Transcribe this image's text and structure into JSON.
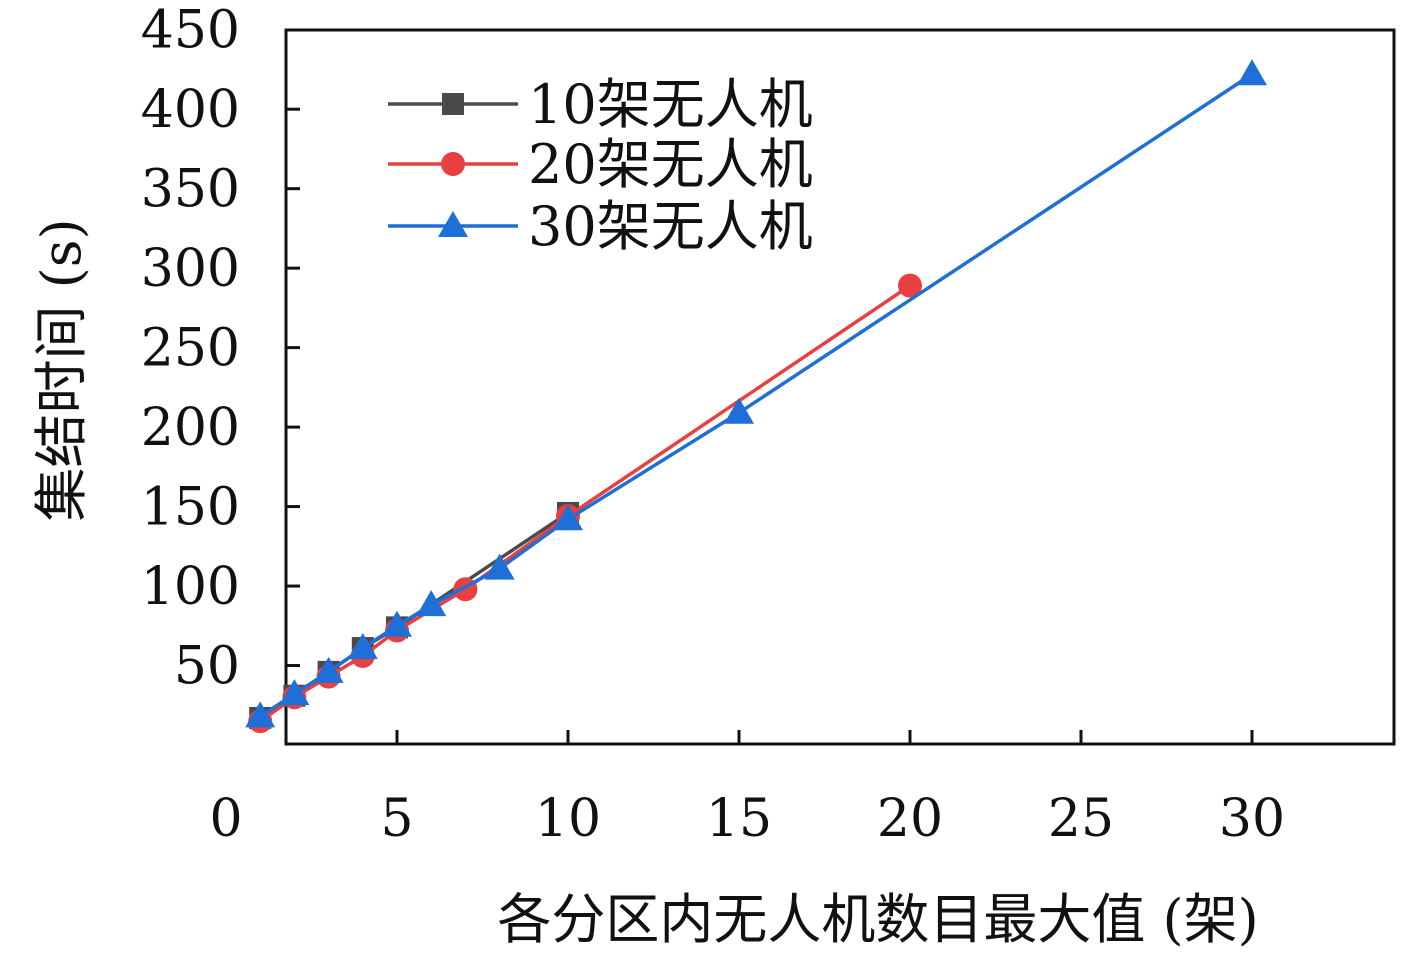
{
  "chart_data": {
    "type": "line",
    "title": "",
    "xlabel": "各分区内无人机数目最大值 (架)",
    "ylabel": "集结时间 (s)",
    "xlim": [
      0,
      32.5
    ],
    "ylim": [
      0,
      450
    ],
    "xticks": [
      0,
      5,
      10,
      15,
      20,
      25,
      30
    ],
    "yticks": [
      50,
      100,
      150,
      200,
      250,
      300,
      350,
      400,
      450
    ],
    "xtick_labels": [
      "0",
      "5",
      "10",
      "15",
      "20",
      "25",
      "30"
    ],
    "ytick_labels": [
      "50",
      "100",
      "150",
      "200",
      "250",
      "300",
      "350",
      "400",
      "450"
    ],
    "grid": false,
    "legend_position": "top-left",
    "series": [
      {
        "name": "10架无人机",
        "color": "#4a4a4a",
        "marker": "square",
        "x": [
          1,
          2,
          3,
          4,
          5,
          10
        ],
        "y": [
          17,
          31,
          46,
          61,
          74,
          146
        ]
      },
      {
        "name": "20架无人机",
        "color": "#e84040",
        "marker": "circle",
        "x": [
          1,
          2,
          3,
          4,
          5,
          7,
          10,
          20
        ],
        "y": [
          15,
          30,
          43,
          56,
          72,
          98,
          144,
          289
        ]
      },
      {
        "name": "30架无人机",
        "color": "#1f6fd8",
        "marker": "triangle",
        "x": [
          1,
          2,
          3,
          4,
          5,
          6,
          8,
          10,
          15,
          30
        ],
        "y": [
          18,
          32,
          46,
          61,
          75,
          88,
          111,
          142,
          209,
          422
        ]
      }
    ]
  }
}
